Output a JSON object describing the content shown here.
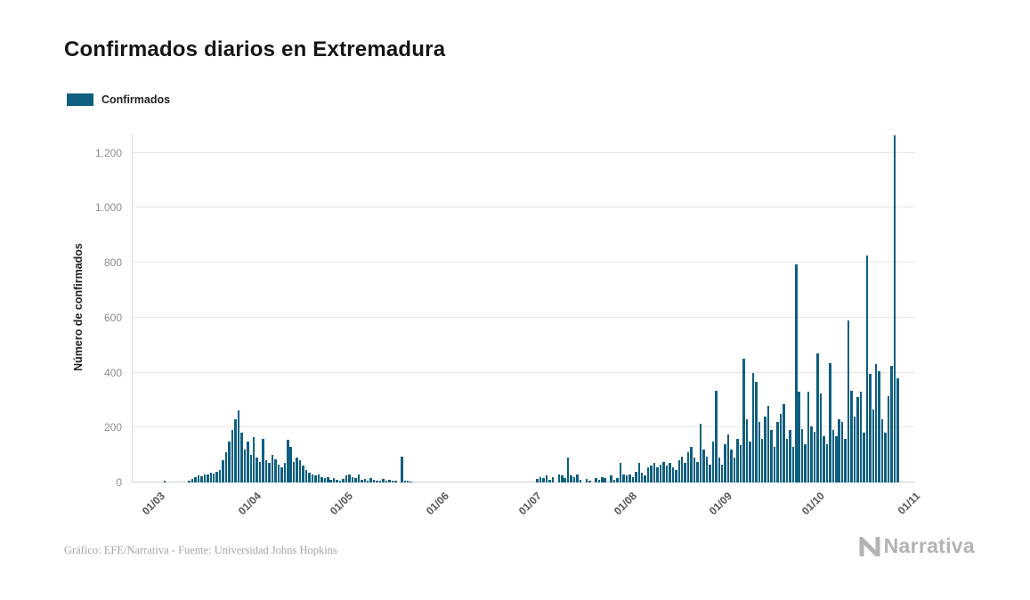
{
  "header": {
    "title": "Confirmados diarios en Extremadura"
  },
  "footer": {
    "credit": "Gráfico: EFE/Narrativa - Fuente: Universidad Johns Hopkins",
    "brand": "Narrativa"
  },
  "chart_data": {
    "type": "bar",
    "title": "Confirmados diarios en Extremadura",
    "xlabel": "",
    "ylabel": "Número de confirmados",
    "grid": true,
    "legend_position": "top-left",
    "ylim": [
      0,
      1270
    ],
    "y_ticks": [
      0,
      200,
      400,
      600,
      800,
      1000,
      1200
    ],
    "y_tick_labels": [
      "0",
      "200",
      "400",
      "600",
      "800",
      "1.000",
      "1.200"
    ],
    "x_tick_labels": [
      "01/03",
      "01/04",
      "01/05",
      "01/06",
      "01/07",
      "01/08",
      "01/09",
      "01/10",
      "01/11"
    ],
    "x_tick_indices": [
      8,
      39,
      69,
      100,
      130,
      161,
      192,
      222,
      253
    ],
    "series": [
      {
        "name": "Confirmados",
        "color": "#0e5f80",
        "values": [
          0,
          0,
          0,
          0,
          0,
          0,
          0,
          0,
          0,
          0,
          8,
          0,
          0,
          0,
          0,
          0,
          0,
          0,
          5,
          12,
          18,
          25,
          22,
          30,
          28,
          35,
          32,
          40,
          45,
          80,
          110,
          150,
          190,
          230,
          262,
          180,
          120,
          150,
          100,
          165,
          90,
          75,
          160,
          80,
          70,
          100,
          85,
          65,
          55,
          70,
          155,
          130,
          75,
          90,
          80,
          60,
          45,
          35,
          30,
          25,
          30,
          20,
          15,
          20,
          10,
          15,
          10,
          8,
          12,
          25,
          30,
          20,
          15,
          28,
          10,
          12,
          8,
          15,
          10,
          5,
          8,
          12,
          6,
          10,
          8,
          5,
          0,
          95,
          8,
          5,
          3,
          0,
          0,
          0,
          0,
          0,
          0,
          0,
          0,
          0,
          0,
          0,
          0,
          0,
          0,
          0,
          0,
          0,
          0,
          0,
          0,
          0,
          0,
          0,
          0,
          0,
          0,
          0,
          0,
          0,
          0,
          0,
          0,
          0,
          0,
          0,
          0,
          0,
          0,
          0,
          0,
          12,
          20,
          15,
          25,
          10,
          18,
          0,
          30,
          25,
          15,
          90,
          25,
          20,
          30,
          10,
          0,
          12,
          8,
          0,
          15,
          10,
          20,
          15,
          0,
          25,
          10,
          15,
          70,
          30,
          25,
          30,
          20,
          40,
          70,
          35,
          25,
          55,
          60,
          70,
          55,
          65,
          75,
          60,
          70,
          55,
          45,
          80,
          95,
          70,
          110,
          130,
          90,
          75,
          215,
          120,
          95,
          65,
          150,
          335,
          90,
          65,
          140,
          175,
          120,
          90,
          160,
          135,
          450,
          230,
          150,
          400,
          365,
          220,
          160,
          240,
          280,
          190,
          130,
          220,
          250,
          285,
          160,
          190,
          130,
          795,
          330,
          195,
          140,
          330,
          205,
          185,
          470,
          325,
          170,
          140,
          435,
          190,
          170,
          230,
          220,
          160,
          590,
          335,
          240,
          310,
          330,
          180,
          825,
          395,
          265,
          430,
          405,
          230,
          180,
          315,
          425,
          1265,
          380,
          0,
          0,
          0,
          0,
          0
        ]
      }
    ]
  }
}
